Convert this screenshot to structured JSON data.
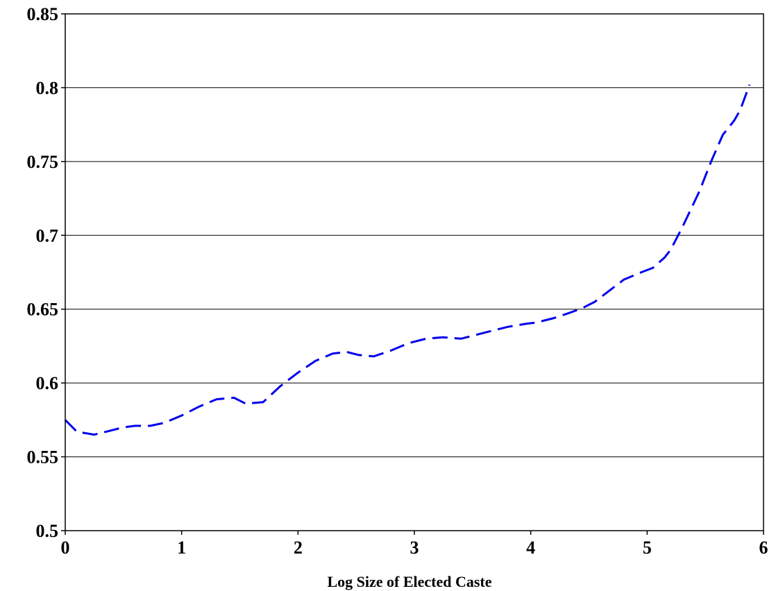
{
  "chart_data": {
    "type": "line",
    "title": "",
    "xlabel": "Log Size of Elected Caste",
    "ylabel": "",
    "xlim": [
      0,
      6
    ],
    "ylim": [
      0.5,
      0.85
    ],
    "x_ticks": [
      0,
      1,
      2,
      3,
      4,
      5,
      6
    ],
    "x_tick_labels": [
      "0",
      "1",
      "2",
      "3",
      "4",
      "5",
      "6"
    ],
    "y_ticks": [
      0.5,
      0.55,
      0.6,
      0.65,
      0.7,
      0.75,
      0.8,
      0.85
    ],
    "y_tick_labels": [
      "0.5",
      "0.55",
      "0.6",
      "0.65",
      "0.7",
      "0.75",
      "0.8",
      "0.85"
    ],
    "grid": "horizontal",
    "legend": "none",
    "series": [
      {
        "color": "#0000ee",
        "style": "dashed",
        "x": [
          0,
          0.1,
          0.25,
          0.4,
          0.5,
          0.6,
          0.73,
          0.85,
          1.0,
          1.15,
          1.3,
          1.45,
          1.55,
          1.7,
          1.85,
          2.0,
          2.15,
          2.3,
          2.42,
          2.52,
          2.65,
          2.8,
          2.95,
          3.1,
          3.25,
          3.4,
          3.5,
          3.65,
          3.8,
          3.95,
          4.05,
          4.2,
          4.35,
          4.45,
          4.55,
          4.65,
          4.8,
          4.95,
          5.05,
          5.15,
          5.2,
          5.3,
          5.45,
          5.55,
          5.65,
          5.75,
          5.8,
          5.88
        ],
        "values": [
          0.575,
          0.567,
          0.565,
          0.568,
          0.57,
          0.571,
          0.571,
          0.573,
          0.578,
          0.584,
          0.589,
          0.59,
          0.586,
          0.587,
          0.598,
          0.607,
          0.615,
          0.62,
          0.621,
          0.619,
          0.618,
          0.622,
          0.627,
          0.63,
          0.631,
          0.63,
          0.632,
          0.635,
          0.638,
          0.64,
          0.641,
          0.644,
          0.648,
          0.651,
          0.655,
          0.661,
          0.67,
          0.675,
          0.678,
          0.685,
          0.69,
          0.705,
          0.73,
          0.75,
          0.768,
          0.778,
          0.785,
          0.802
        ]
      }
    ]
  }
}
